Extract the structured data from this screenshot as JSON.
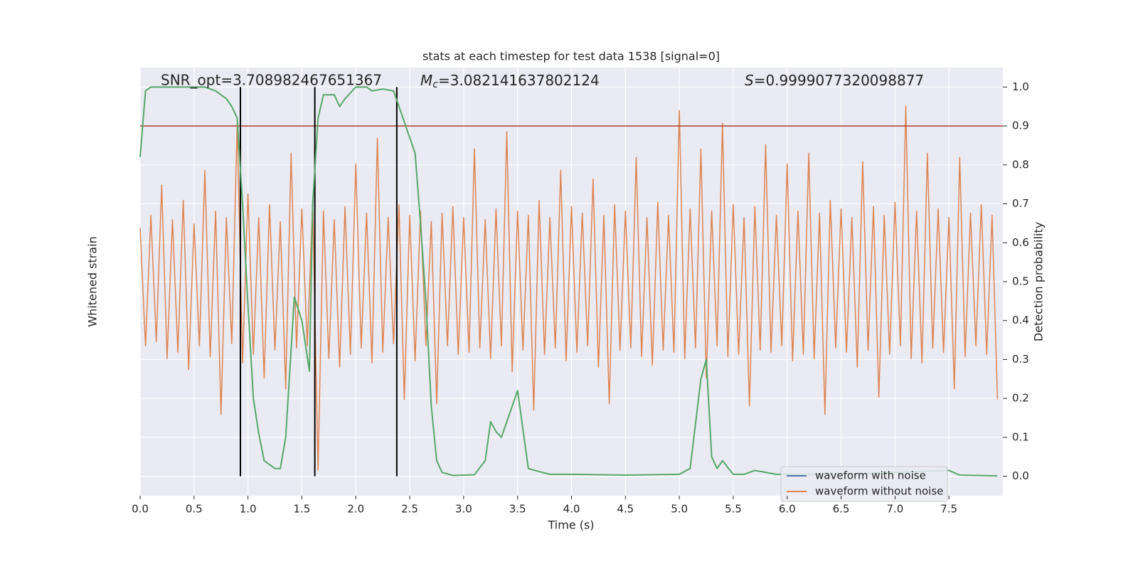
{
  "chart_data": {
    "type": "line",
    "title": "stats at each timestep for test data 1538 [signal=0]",
    "xlabel": "Time (s)",
    "ylabel": "Whitened strain",
    "y2label": "Detection probability",
    "annotations": [
      {
        "text": "SNR_opt=3.708982467651367"
      },
      {
        "symbol": "M",
        "subscript": "c",
        "text": "=3.082141637802124"
      },
      {
        "symbol": "S",
        "text": "=0.9999077320098877"
      }
    ],
    "xlim": [
      0,
      8
    ],
    "xticks": [
      {
        "value": 0,
        "label": "0.0"
      },
      {
        "value": 0.5,
        "label": "0.5"
      },
      {
        "value": 1,
        "label": "1.0"
      },
      {
        "value": 1.5,
        "label": "1.5"
      },
      {
        "value": 2,
        "label": "2.0"
      },
      {
        "value": 2.5,
        "label": "2.5"
      },
      {
        "value": 3,
        "label": "3.0"
      },
      {
        "value": 3.5,
        "label": "3.5"
      },
      {
        "value": 4,
        "label": "4.0"
      },
      {
        "value": 4.5,
        "label": "4.5"
      },
      {
        "value": 5,
        "label": "5.0"
      },
      {
        "value": 5.5,
        "label": "5.5"
      },
      {
        "value": 6,
        "label": "6.0"
      },
      {
        "value": 6.5,
        "label": "6.5"
      },
      {
        "value": 7,
        "label": "7.0"
      },
      {
        "value": 7.5,
        "label": "7.5"
      }
    ],
    "ylim": [
      -1,
      1
    ],
    "y2lim": [
      -0.05,
      1.05
    ],
    "y2ticks": [
      {
        "value": 0,
        "label": "0.0"
      },
      {
        "value": 0.1,
        "label": "0.1"
      },
      {
        "value": 0.2,
        "label": "0.2"
      },
      {
        "value": 0.3,
        "label": "0.3"
      },
      {
        "value": 0.4,
        "label": "0.4"
      },
      {
        "value": 0.5,
        "label": "0.5"
      },
      {
        "value": 0.6,
        "label": "0.6"
      },
      {
        "value": 0.7,
        "label": "0.7"
      },
      {
        "value": 0.8,
        "label": "0.8"
      },
      {
        "value": 0.9,
        "label": "0.9"
      },
      {
        "value": 1,
        "label": "1.0"
      }
    ],
    "grid": true,
    "legend": "lower right",
    "legend_entries": [
      {
        "name": "waveform with noise",
        "color": "#4c72b0"
      },
      {
        "name": "waveform without noise",
        "color": "#dd8452"
      }
    ],
    "noise": {
      "color": "#dd8452",
      "axis": "y",
      "x": [
        0,
        0.05,
        0.1,
        0.15,
        0.2,
        0.25,
        0.3,
        0.35,
        0.4,
        0.45,
        0.5,
        0.55,
        0.6,
        0.65,
        0.7,
        0.75,
        0.8,
        0.85,
        0.9,
        0.95,
        1,
        1.05,
        1.1,
        1.15,
        1.2,
        1.25,
        1.3,
        1.35,
        1.4,
        1.45,
        1.5,
        1.55,
        1.6,
        1.65,
        1.7,
        1.75,
        1.8,
        1.85,
        1.9,
        1.95,
        2,
        2.05,
        2.1,
        2.15,
        2.2,
        2.25,
        2.3,
        2.35,
        2.4,
        2.45,
        2.5,
        2.55,
        2.6,
        2.65,
        2.7,
        2.75,
        2.8,
        2.85,
        2.9,
        2.95,
        3,
        3.05,
        3.1,
        3.15,
        3.2,
        3.25,
        3.3,
        3.35,
        3.4,
        3.45,
        3.5,
        3.55,
        3.6,
        3.65,
        3.7,
        3.75,
        3.8,
        3.85,
        3.9,
        3.95,
        4,
        4.05,
        4.1,
        4.15,
        4.2,
        4.25,
        4.3,
        4.35,
        4.4,
        4.45,
        4.5,
        4.55,
        4.6,
        4.65,
        4.7,
        4.75,
        4.8,
        4.85,
        4.9,
        4.95,
        5,
        5.05,
        5.1,
        5.15,
        5.2,
        5.25,
        5.3,
        5.35,
        5.4,
        5.45,
        5.5,
        5.55,
        5.6,
        5.65,
        5.7,
        5.75,
        5.8,
        5.85,
        5.9,
        5.95,
        6,
        6.05,
        6.1,
        6.15,
        6.2,
        6.25,
        6.3,
        6.35,
        6.4,
        6.45,
        6.5,
        6.55,
        6.6,
        6.65,
        6.7,
        6.75,
        6.8,
        6.85,
        6.9,
        6.95,
        7,
        7.05,
        7.1,
        7.15,
        7.2,
        7.25,
        7.3,
        7.35,
        7.4,
        7.45,
        7.5,
        7.55,
        7.6,
        7.65,
        7.7,
        7.75,
        7.8,
        7.85,
        7.9,
        7.95
      ],
      "values": [
        0.25,
        -0.3,
        0.31,
        -0.28,
        0.45,
        -0.36,
        0.29,
        -0.33,
        0.38,
        -0.41,
        0.27,
        -0.3,
        0.52,
        -0.35,
        0.33,
        -0.62,
        0.3,
        -0.29,
        0.74,
        -0.38,
        0.41,
        -0.34,
        0.3,
        -0.45,
        0.36,
        -0.32,
        0.28,
        -0.5,
        0.6,
        -0.31,
        0.34,
        -0.3,
        0.37,
        -0.88,
        0.33,
        -0.36,
        0.29,
        -0.4,
        0.35,
        -0.34,
        0.55,
        -0.31,
        0.32,
        -0.38,
        0.67,
        -0.33,
        0.3,
        -0.29,
        0.36,
        -0.55,
        0.31,
        -0.37,
        0.33,
        -0.3,
        0.28,
        -0.57,
        0.32,
        -0.3,
        0.35,
        -0.34,
        0.3,
        -0.33,
        0.62,
        -0.31,
        0.29,
        -0.36,
        0.34,
        -0.3,
        0.7,
        -0.42,
        0.33,
        -0.32,
        0.31,
        -0.6,
        0.38,
        -0.34,
        0.3,
        -0.31,
        0.52,
        -0.37,
        0.35,
        -0.33,
        0.32,
        -0.3,
        0.48,
        -0.4,
        0.31,
        -0.57,
        0.36,
        -0.32,
        0.33,
        -0.31,
        0.58,
        -0.35,
        0.3,
        -0.39,
        0.37,
        -0.32,
        0.31,
        -0.33,
        0.8,
        -0.36,
        0.34,
        -0.31,
        0.62,
        -0.45,
        0.33,
        -0.3,
        0.74,
        -0.35,
        0.36,
        -0.34,
        0.3,
        -0.58,
        0.35,
        -0.32,
        0.64,
        -0.33,
        0.31,
        -0.3,
        0.55,
        -0.37,
        0.33,
        -0.34,
        0.6,
        -0.36,
        0.32,
        -0.62,
        0.38,
        -0.31,
        0.34,
        -0.33,
        0.3,
        -0.4,
        0.56,
        -0.32,
        0.35,
        -0.54,
        0.31,
        -0.34,
        0.37,
        -0.3,
        0.82,
        -0.36,
        0.33,
        -0.38,
        0.6,
        -0.31,
        0.34,
        -0.33,
        0.3,
        -0.5,
        0.58,
        -0.35,
        0.32,
        -0.3,
        0.36,
        -0.34,
        0.31,
        -0.55
      ]
    },
    "probability": {
      "color": "#55a868",
      "axis": "y2",
      "x": [
        0,
        0.05,
        0.1,
        0.2,
        0.3,
        0.4,
        0.5,
        0.6,
        0.7,
        0.8,
        0.85,
        0.9,
        0.95,
        1.0,
        1.05,
        1.1,
        1.15,
        1.2,
        1.25,
        1.3,
        1.35,
        1.43,
        1.5,
        1.57,
        1.6,
        1.65,
        1.7,
        1.8,
        1.85,
        1.9,
        2.0,
        2.1,
        2.15,
        2.25,
        2.35,
        2.4,
        2.5,
        2.55,
        2.6,
        2.65,
        2.7,
        2.75,
        2.8,
        2.9,
        3.0,
        3.1,
        3.2,
        3.25,
        3.3,
        3.35,
        3.5,
        3.6,
        3.7,
        3.8,
        4.0,
        4.5,
        5.0,
        5.1,
        5.2,
        5.25,
        5.3,
        5.35,
        5.4,
        5.5,
        5.6,
        5.7,
        5.8,
        5.9,
        6.5,
        7.0,
        7.5,
        7.6,
        7.95
      ],
      "values": [
        0.82,
        0.99,
        1.0,
        1.0,
        1.0,
        1.0,
        1.0,
        1.0,
        0.99,
        0.97,
        0.95,
        0.92,
        0.7,
        0.44,
        0.2,
        0.11,
        0.04,
        0.03,
        0.02,
        0.02,
        0.1,
        0.46,
        0.4,
        0.27,
        0.7,
        0.92,
        0.98,
        0.98,
        0.95,
        0.97,
        1.0,
        1.0,
        0.99,
        0.995,
        0.99,
        0.95,
        0.87,
        0.83,
        0.65,
        0.45,
        0.18,
        0.04,
        0.01,
        0.002,
        0.003,
        0.004,
        0.04,
        0.14,
        0.115,
        0.1,
        0.22,
        0.02,
        0.012,
        0.005,
        0.005,
        0.003,
        0.005,
        0.02,
        0.25,
        0.3,
        0.05,
        0.02,
        0.04,
        0.005,
        0.005,
        0.015,
        0.01,
        0.005,
        0.005,
        0.01,
        0.015,
        0.003,
        0.001
      ]
    },
    "threshold": {
      "value": 0.9,
      "color": "#b03a2e",
      "axis": "y2"
    },
    "vlines": {
      "x": [
        0.93,
        1.62,
        2.38
      ],
      "ymin": 0,
      "ymax": 1,
      "color": "#000000",
      "axis": "y2"
    }
  }
}
